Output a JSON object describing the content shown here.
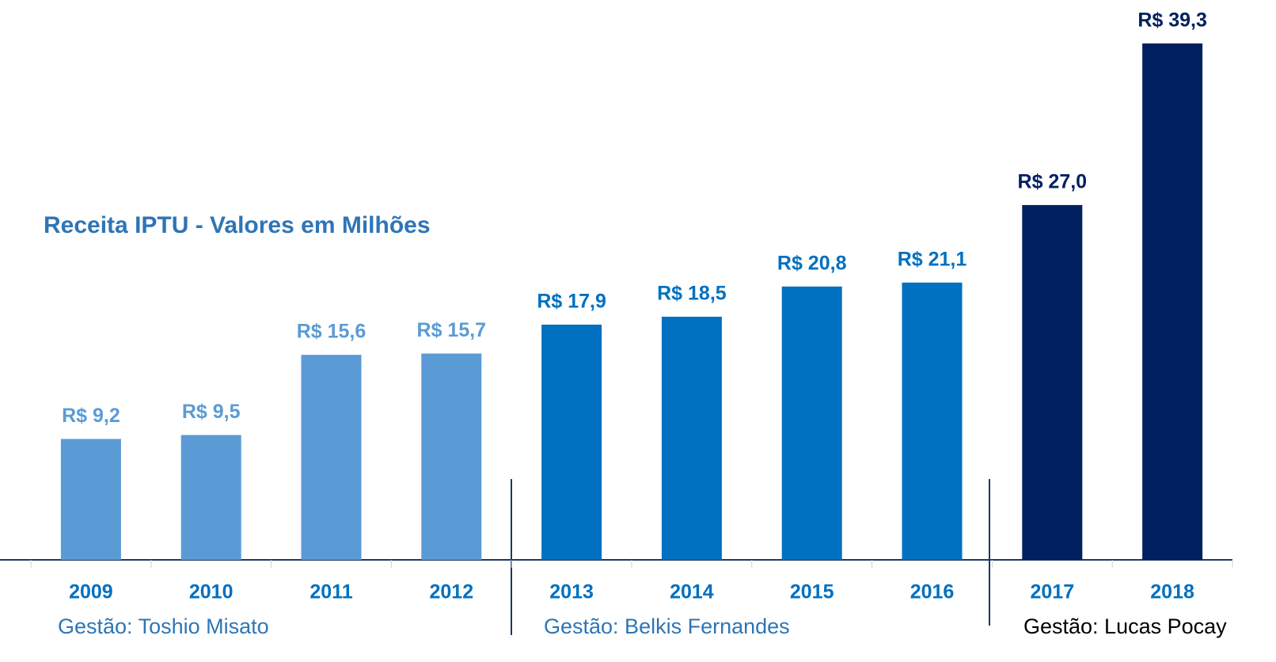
{
  "chart_data": {
    "type": "bar",
    "title": "Receita IPTU - Valores em Milhões",
    "categories": [
      "2009",
      "2010",
      "2011",
      "2012",
      "2013",
      "2014",
      "2015",
      "2016",
      "2017",
      "2018"
    ],
    "values": [
      9.2,
      9.5,
      15.6,
      15.7,
      17.9,
      18.5,
      20.8,
      21.1,
      27.0,
      39.3
    ],
    "value_labels": [
      "R$ 9,2",
      "R$ 9,5",
      "R$ 15,6",
      "R$ 15,7",
      "R$ 17,9",
      "R$ 18,5",
      "R$ 20,8",
      "R$ 21,1",
      "R$ 27,0",
      "R$ 39,3"
    ],
    "colors": [
      "#5b9bd5",
      "#5b9bd5",
      "#5b9bd5",
      "#5b9bd5",
      "#0070c0",
      "#0070c0",
      "#0070c0",
      "#0070c0",
      "#002060",
      "#002060"
    ],
    "ylim": [
      0,
      42
    ],
    "annotations": [
      {
        "text": "Gestão: Toshio Misato",
        "color": "#2e75b6"
      },
      {
        "text": "Gestão: Belkis Fernandes",
        "color": "#2e75b6"
      },
      {
        "text": "Gestão: Lucas Pocay",
        "color": "#000000"
      }
    ]
  }
}
